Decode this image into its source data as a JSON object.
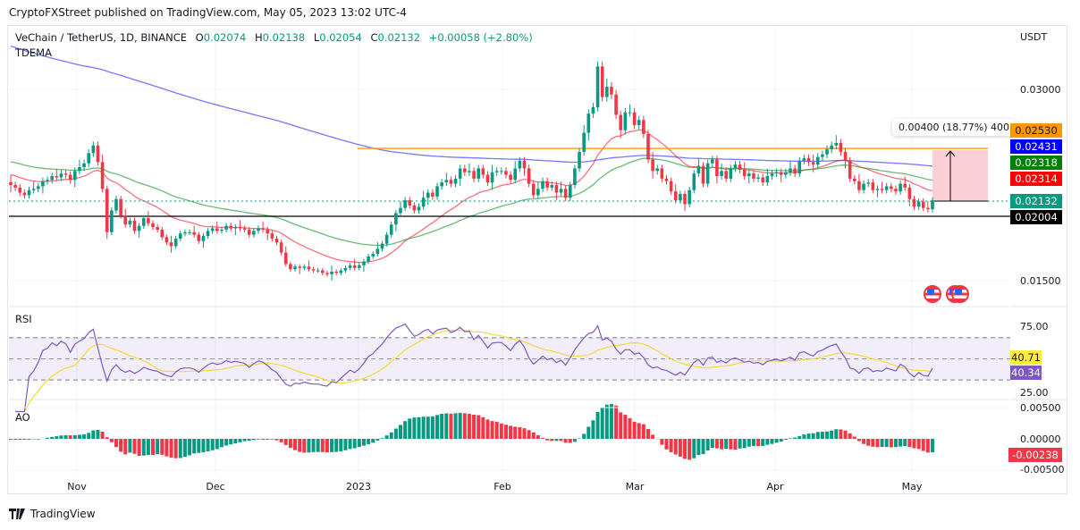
{
  "caption": "CryptoFXStreet published on TradingView.com, May 05, 2023 13:02 UTC-4",
  "symbol": {
    "title": "VeChain / TetherUS, 1D, BINANCE",
    "open_label": "O",
    "open": "0.02074",
    "high_label": "H",
    "high": "0.02138",
    "low_label": "L",
    "low": "0.02054",
    "close_label": "C",
    "close": "0.02132",
    "change": "+0.00058 (+2.80%)",
    "indicator": "TDEMA"
  },
  "price_axis": {
    "currency": "USDT",
    "ticks": [
      "0.03000",
      "0.01500"
    ],
    "tags": [
      {
        "value": "0.02530",
        "color": "#ff9800",
        "text_color": "#131722"
      },
      {
        "value": "0.02431",
        "color": "#0000ff",
        "text_color": "#ffffff"
      },
      {
        "value": "0.02318",
        "color": "#008000",
        "text_color": "#ffffff"
      },
      {
        "value": "0.02314",
        "color": "#ff0000",
        "text_color": "#ffffff"
      },
      {
        "value": "0.02132",
        "color": "#089981",
        "text_color": "#ffffff"
      },
      {
        "value": "0.02004",
        "color": "#000000",
        "text_color": "#ffffff"
      }
    ]
  },
  "measure": {
    "label": "0.00400 (18.77%) 400"
  },
  "rsi": {
    "title": "RSI",
    "ticks": [
      "75.00",
      "25.00"
    ],
    "rsi_value": "40.34",
    "ma_value": "40.71",
    "rsi_color": "#7e57c2",
    "ma_color": "#ffeb3b"
  },
  "ao": {
    "title": "AO",
    "ticks": [
      "0.00500",
      "0.00000",
      "-0.00500"
    ],
    "value": "-0.00238",
    "up_color": "#089981",
    "down_color": "#f23645"
  },
  "time_axis": [
    "Nov",
    "Dec",
    "2023",
    "Feb",
    "Mar",
    "Apr",
    "May"
  ],
  "footer": {
    "brand": "TradingView"
  },
  "chart_data": {
    "type": "candlestick",
    "title": "VeChain / TetherUS, 1D, BINANCE",
    "ylabel": "USDT",
    "ylim": [
      0.0135,
      0.0335
    ],
    "x_range": [
      "2022-10-17",
      "2023-05-05"
    ],
    "horizontal_lines": [
      {
        "name": "resistance",
        "value": 0.0253,
        "color": "#ff9800"
      },
      {
        "name": "support",
        "value": 0.02004,
        "color": "#000000"
      },
      {
        "name": "last-price",
        "value": 0.02132,
        "color": "#089981",
        "style": "dotted"
      }
    ],
    "close_series": [
      0.0225,
      0.0223,
      0.0219,
      0.0217,
      0.0221,
      0.0222,
      0.0224,
      0.0228,
      0.0229,
      0.0232,
      0.0231,
      0.0234,
      0.0233,
      0.0229,
      0.0236,
      0.0239,
      0.0242,
      0.025,
      0.0256,
      0.0243,
      0.0222,
      0.0188,
      0.0205,
      0.0214,
      0.0201,
      0.0194,
      0.0197,
      0.0189,
      0.0193,
      0.0199,
      0.0195,
      0.0192,
      0.019,
      0.0184,
      0.018,
      0.0177,
      0.0183,
      0.0187,
      0.0188,
      0.0188,
      0.0186,
      0.0181,
      0.0185,
      0.0189,
      0.0191,
      0.0189,
      0.019,
      0.0193,
      0.0191,
      0.0192,
      0.0191,
      0.019,
      0.0186,
      0.0189,
      0.0191,
      0.019,
      0.0187,
      0.0183,
      0.018,
      0.0172,
      0.0163,
      0.0159,
      0.0161,
      0.016,
      0.0161,
      0.0159,
      0.0158,
      0.0158,
      0.0156,
      0.0155,
      0.0157,
      0.0156,
      0.0158,
      0.016,
      0.0162,
      0.016,
      0.0162,
      0.0165,
      0.0169,
      0.0171,
      0.0175,
      0.0179,
      0.0186,
      0.0194,
      0.0203,
      0.0207,
      0.0213,
      0.0209,
      0.0205,
      0.0208,
      0.0215,
      0.0219,
      0.0216,
      0.0224,
      0.0227,
      0.0229,
      0.0226,
      0.023,
      0.0238,
      0.0235,
      0.0236,
      0.023,
      0.0238,
      0.0233,
      0.0227,
      0.0235,
      0.0236,
      0.0236,
      0.0233,
      0.0229,
      0.0238,
      0.0244,
      0.0238,
      0.0226,
      0.0217,
      0.0222,
      0.0228,
      0.0223,
      0.0225,
      0.0219,
      0.0222,
      0.0215,
      0.0225,
      0.0238,
      0.0251,
      0.0266,
      0.0281,
      0.0286,
      0.0318,
      0.0294,
      0.0302,
      0.0296,
      0.028,
      0.0268,
      0.0282,
      0.0282,
      0.0272,
      0.0276,
      0.0265,
      0.0245,
      0.0236,
      0.0238,
      0.023,
      0.0228,
      0.022,
      0.0213,
      0.0218,
      0.021,
      0.0221,
      0.0234,
      0.024,
      0.0226,
      0.0242,
      0.0245,
      0.0232,
      0.0236,
      0.023,
      0.0238,
      0.0241,
      0.0237,
      0.0232,
      0.0234,
      0.023,
      0.0231,
      0.0227,
      0.0232,
      0.0234,
      0.0235,
      0.0233,
      0.0235,
      0.0238,
      0.0234,
      0.0244,
      0.0246,
      0.0243,
      0.0241,
      0.0247,
      0.0249,
      0.0253,
      0.0256,
      0.0258,
      0.0251,
      0.0244,
      0.023,
      0.0228,
      0.0221,
      0.0226,
      0.0227,
      0.0221,
      0.0222,
      0.0221,
      0.0224,
      0.0222,
      0.022,
      0.0226,
      0.0223,
      0.0214,
      0.0208,
      0.0212,
      0.0207,
      0.0206,
      0.0213
    ]
  }
}
